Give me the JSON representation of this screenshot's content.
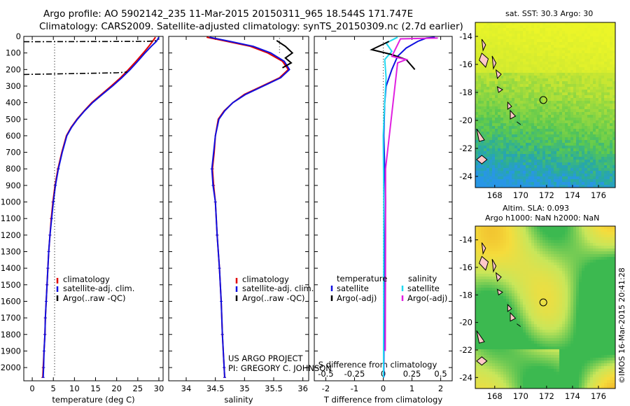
{
  "header": {
    "line1": "Argo profile: AO 5902142_235 11-Mar-2015 20150311_965 18.544S 171.747E",
    "line2": "Climatology: CARS2009. Satellite-adjusted climatology: synTS_20150309.nc (2.7d earlier)"
  },
  "colors": {
    "climatology": "#e00000",
    "satellite": "#1010e0",
    "argo": "#000000",
    "salinity_satellite": "#20d8f0",
    "salinity_argo": "#e020e0"
  },
  "chart_data": [
    {
      "type": "line",
      "id": "temperature",
      "xlabel": "temperature (deg C)",
      "xlim": [
        -2,
        31
      ],
      "xticks": [
        0,
        5,
        10,
        15,
        20,
        25,
        30
      ],
      "ylim": [
        2080,
        0
      ],
      "yticks": [
        0,
        100,
        200,
        300,
        400,
        500,
        600,
        700,
        800,
        900,
        1000,
        1100,
        1200,
        1300,
        1400,
        1500,
        1600,
        1700,
        1800,
        1900,
        2000
      ],
      "legend": [
        "climatology",
        "satellite-adj. clim.",
        "Argo(..raw -QC)"
      ],
      "series": [
        {
          "name": "climatology",
          "points": [
            [
              29.2,
              5
            ],
            [
              28.5,
              30
            ],
            [
              27.6,
              60
            ],
            [
              26.3,
              100
            ],
            [
              24.6,
              150
            ],
            [
              22.8,
              200
            ],
            [
              20.9,
              250
            ],
            [
              18.7,
              300
            ],
            [
              16.4,
              350
            ],
            [
              14.1,
              400
            ],
            [
              12.3,
              450
            ],
            [
              10.6,
              500
            ],
            [
              9.2,
              550
            ],
            [
              8.1,
              600
            ],
            [
              7.0,
              700
            ],
            [
              6.1,
              800
            ],
            [
              5.4,
              900
            ],
            [
              4.9,
              1000
            ],
            [
              4.5,
              1100
            ],
            [
              4.2,
              1200
            ],
            [
              3.9,
              1300
            ],
            [
              3.7,
              1400
            ],
            [
              3.5,
              1500
            ],
            [
              3.3,
              1600
            ],
            [
              3.1,
              1700
            ],
            [
              3.0,
              1800
            ],
            [
              2.8,
              1900
            ],
            [
              2.6,
              2000
            ],
            [
              2.5,
              2060
            ]
          ]
        },
        {
          "name": "satellite-adj. clim.",
          "points": [
            [
              30.0,
              5
            ],
            [
              29.4,
              30
            ],
            [
              28.2,
              60
            ],
            [
              26.7,
              100
            ],
            [
              25.0,
              150
            ],
            [
              23.2,
              200
            ],
            [
              21.2,
              250
            ],
            [
              19.0,
              300
            ],
            [
              16.6,
              350
            ],
            [
              14.3,
              400
            ],
            [
              12.4,
              450
            ],
            [
              10.7,
              500
            ],
            [
              9.3,
              550
            ],
            [
              8.2,
              600
            ],
            [
              7.1,
              700
            ],
            [
              6.2,
              800
            ],
            [
              5.5,
              900
            ],
            [
              5.0,
              1000
            ],
            [
              4.6,
              1100
            ],
            [
              4.2,
              1200
            ],
            [
              3.9,
              1300
            ],
            [
              3.7,
              1400
            ],
            [
              3.5,
              1500
            ],
            [
              3.3,
              1600
            ],
            [
              3.1,
              1700
            ],
            [
              3.0,
              1800
            ],
            [
              2.8,
              1900
            ],
            [
              2.7,
              2000
            ],
            [
              2.6,
              2060
            ]
          ]
        },
        {
          "name": "Argo(..raw -QC)",
          "points": [
            [
              -2,
              32
            ],
            [
              27.5,
              30
            ],
            [
              29.5,
              26
            ]
          ],
          "dashed": true
        },
        {
          "name": "Argo(..raw -QC) deep",
          "points": [
            [
              -2,
              230
            ],
            [
              20.0,
              220
            ],
            [
              22.5,
              215
            ]
          ],
          "dashed": true
        },
        {
          "name": "ref",
          "points": [
            [
              5.3,
              30
            ],
            [
              5.3,
              2060
            ]
          ],
          "dotted": true
        }
      ]
    },
    {
      "type": "line",
      "id": "salinity",
      "xlabel": "salinity",
      "xlim": [
        33.7,
        36.1
      ],
      "xticks": [
        34,
        34.5,
        35,
        35.5,
        36
      ],
      "ylim": [
        2080,
        0
      ],
      "legend": [
        "climatology",
        "satellite-adj. clim.",
        "Argo(..raw -QC)"
      ],
      "annotation": [
        "US ARGO PROJECT",
        "PI: GREGORY C. JOHNSON"
      ],
      "series": [
        {
          "name": "climatology",
          "points": [
            [
              34.35,
              5
            ],
            [
              34.7,
              30
            ],
            [
              35.1,
              60
            ],
            [
              35.4,
              100
            ],
            [
              35.65,
              150
            ],
            [
              35.75,
              200
            ],
            [
              35.6,
              250
            ],
            [
              35.3,
              300
            ],
            [
              35.0,
              350
            ],
            [
              34.8,
              400
            ],
            [
              34.65,
              450
            ],
            [
              34.55,
              500
            ],
            [
              34.5,
              600
            ],
            [
              34.48,
              700
            ],
            [
              34.45,
              800
            ],
            [
              34.47,
              900
            ],
            [
              34.5,
              1000
            ],
            [
              34.53,
              1200
            ],
            [
              34.57,
              1400
            ],
            [
              34.6,
              1600
            ],
            [
              34.62,
              1800
            ],
            [
              34.65,
              2000
            ],
            [
              34.66,
              2060
            ]
          ]
        },
        {
          "name": "satellite-adj. clim.",
          "points": [
            [
              34.4,
              5
            ],
            [
              34.75,
              30
            ],
            [
              35.15,
              60
            ],
            [
              35.45,
              100
            ],
            [
              35.68,
              150
            ],
            [
              35.77,
              200
            ],
            [
              35.62,
              250
            ],
            [
              35.32,
              300
            ],
            [
              35.02,
              350
            ],
            [
              34.8,
              400
            ],
            [
              34.66,
              450
            ],
            [
              34.56,
              500
            ],
            [
              34.5,
              600
            ],
            [
              34.47,
              700
            ],
            [
              34.44,
              800
            ],
            [
              34.46,
              900
            ],
            [
              34.5,
              1000
            ],
            [
              34.53,
              1200
            ],
            [
              34.57,
              1400
            ],
            [
              34.6,
              1600
            ],
            [
              34.62,
              1800
            ],
            [
              34.65,
              2000
            ],
            [
              34.66,
              2060
            ]
          ]
        },
        {
          "name": "Argo(..raw -QC)",
          "points": [
            [
              35.55,
              25
            ],
            [
              35.7,
              60
            ],
            [
              35.82,
              100
            ],
            [
              35.7,
              130
            ],
            [
              35.8,
              160
            ],
            [
              35.65,
              190
            ]
          ]
        },
        {
          "name": "ref",
          "points": [
            [
              35.6,
              10
            ],
            [
              35.6,
              100
            ]
          ],
          "dotted": true
        }
      ]
    },
    {
      "type": "line",
      "id": "difference",
      "xlabel": "T difference from climatology",
      "xlabel_top": "S difference from climatology",
      "xlim": [
        -2.4,
        2.4
      ],
      "xticks": [
        -2,
        -1,
        0,
        1,
        2
      ],
      "xticks_top": [
        -0.5,
        -0.25,
        0,
        0.25,
        0.5
      ],
      "ylim": [
        2080,
        0
      ],
      "legend_temperature_title": "temperature",
      "legend_salinity_title": "salinity",
      "legend": [
        "satellite",
        "Argo(-adj)",
        "satellite",
        "Argo(-adj)"
      ],
      "series": [
        {
          "name": "temperature satellite",
          "points": [
            [
              1.8,
              5
            ],
            [
              1.5,
              10
            ],
            [
              1.2,
              30
            ],
            [
              0.8,
              70
            ],
            [
              0.5,
              120
            ],
            [
              0.3,
              200
            ],
            [
              0.1,
              300
            ],
            [
              0.05,
              400
            ],
            [
              0.02,
              600
            ],
            [
              0.05,
              800
            ],
            [
              0.08,
              1000
            ],
            [
              0.05,
              1300
            ],
            [
              0.03,
              1600
            ],
            [
              0.02,
              2060
            ]
          ]
        },
        {
          "name": "salinity satellite",
          "points": [
            [
              0.5,
              5
            ],
            [
              0.1,
              40
            ],
            [
              0.3,
              90
            ],
            [
              0.05,
              140
            ],
            [
              0.1,
              250
            ],
            [
              0.05,
              400
            ],
            [
              0,
              600
            ],
            [
              0.02,
              1000
            ],
            [
              0.01,
              2060
            ]
          ]
        },
        {
          "name": "temperature Argo",
          "points": [
            [
              0.2,
              30
            ],
            [
              -0.4,
              80
            ],
            [
              0.3,
              110
            ],
            [
              0.8,
              140
            ],
            [
              1.1,
              200
            ]
          ]
        },
        {
          "name": "salinity Argo",
          "points": [
            [
              1.9,
              10
            ],
            [
              0.6,
              15
            ],
            [
              0.3,
              120
            ],
            [
              0.8,
              140
            ],
            [
              0.5,
              160
            ],
            [
              0.08,
              800
            ],
            [
              0.08,
              1000
            ],
            [
              0.08,
              1200
            ],
            [
              0.07,
              1900
            ]
          ]
        }
      ]
    }
  ],
  "maps": [
    {
      "id": "sst",
      "title": "sat. SST: 30.3 Argo: 30",
      "xticks": [
        "168",
        "170",
        "172",
        "174",
        "176"
      ],
      "yticks": [
        "-14",
        "-16",
        "-18",
        "-20",
        "-22",
        "-24"
      ],
      "xlim": [
        166.5,
        177.3
      ],
      "ylim": [
        -24.8,
        -13
      ]
    },
    {
      "id": "sla",
      "title": "Altim. SLA: 0.093",
      "subtitle": "Argo h1000: NaN h2000: NaN",
      "xticks": [
        "168",
        "170",
        "172",
        "174",
        "176"
      ],
      "yticks": [
        "-14",
        "-16",
        "-18",
        "-20",
        "-22",
        "-24"
      ],
      "xlim": [
        166.5,
        177.3
      ],
      "ylim": [
        -24.8,
        -13
      ]
    }
  ],
  "argo_position": {
    "lon": 171.747,
    "lat": -18.544
  },
  "watermark": "©IMOS 16-Mar-2015 20:41:28"
}
